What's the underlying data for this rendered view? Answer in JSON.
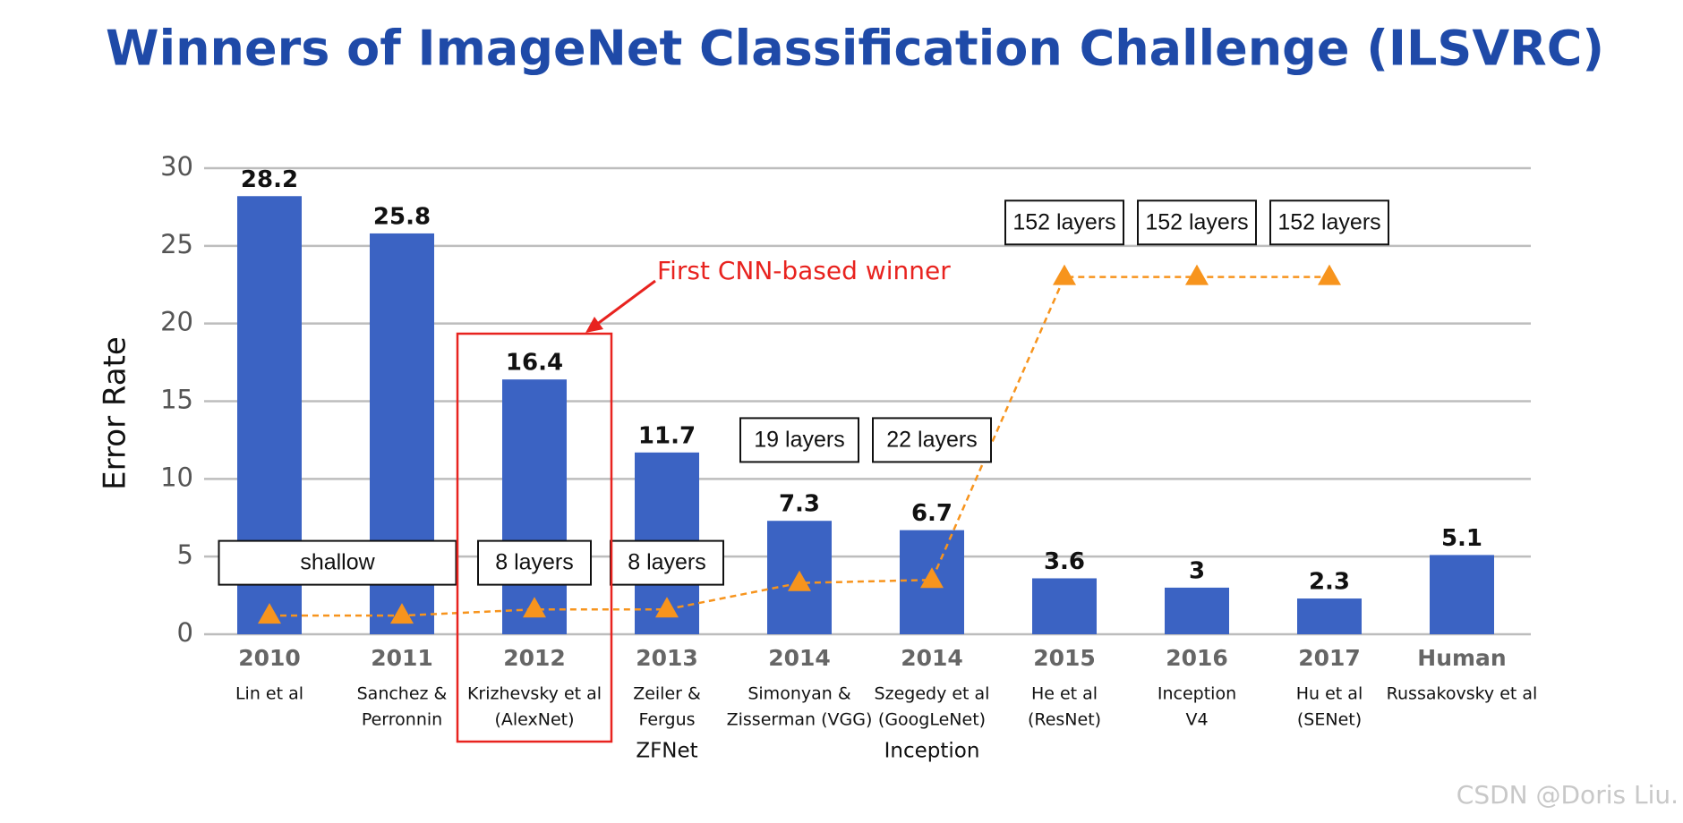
{
  "chart_data": {
    "type": "bar",
    "title": "Winners of ImageNet Classification Challenge (ILSVRC)",
    "y_label": "Error Rate",
    "categories": [
      "2010",
      "2011",
      "2012",
      "2013",
      "2014",
      "2014",
      "2015",
      "2016",
      "2017",
      "Human"
    ],
    "sublabels": [
      [
        "Lin et al"
      ],
      [
        "Sanchez &",
        "Perronnin"
      ],
      [
        "Krizhevsky et al",
        "(AlexNet)"
      ],
      [
        "Zeiler &",
        "Fergus"
      ],
      [
        "Simonyan &",
        "Zisserman (VGG)"
      ],
      [
        "Szegedy et al",
        "(GoogLeNet)"
      ],
      [
        "He et al",
        "(ResNet)"
      ],
      [
        "Inception",
        "V4"
      ],
      [
        "Hu et al",
        "(SENet)"
      ],
      [
        "Russakovsky et al"
      ]
    ],
    "notes": [
      null,
      null,
      null,
      "ZFNet",
      null,
      "Inception",
      null,
      null,
      null,
      null
    ],
    "values": [
      28.2,
      25.8,
      16.4,
      11.7,
      7.3,
      6.7,
      3.6,
      3,
      2.3,
      5.1
    ],
    "color": "#3b63c3",
    "markers": {
      "color": "#f7941d",
      "values": [
        1.2,
        1.2,
        1.6,
        1.6,
        3.3,
        3.5,
        23,
        23,
        23,
        null
      ]
    },
    "depth_labels": [
      "shallow",
      null,
      "8 layers",
      "8 layers",
      "19 layers",
      "22 layers",
      "152 layers",
      "152 layers",
      "152 layers",
      null
    ],
    "annotation": {
      "text": "First CNN-based winner",
      "category_index": 2,
      "color": "#e8231f"
    },
    "ylim": [
      0,
      30
    ],
    "yticks": [
      0,
      5,
      10,
      15,
      20,
      25,
      30
    ],
    "grid": true,
    "watermark": "CSDN @Doris Liu."
  }
}
